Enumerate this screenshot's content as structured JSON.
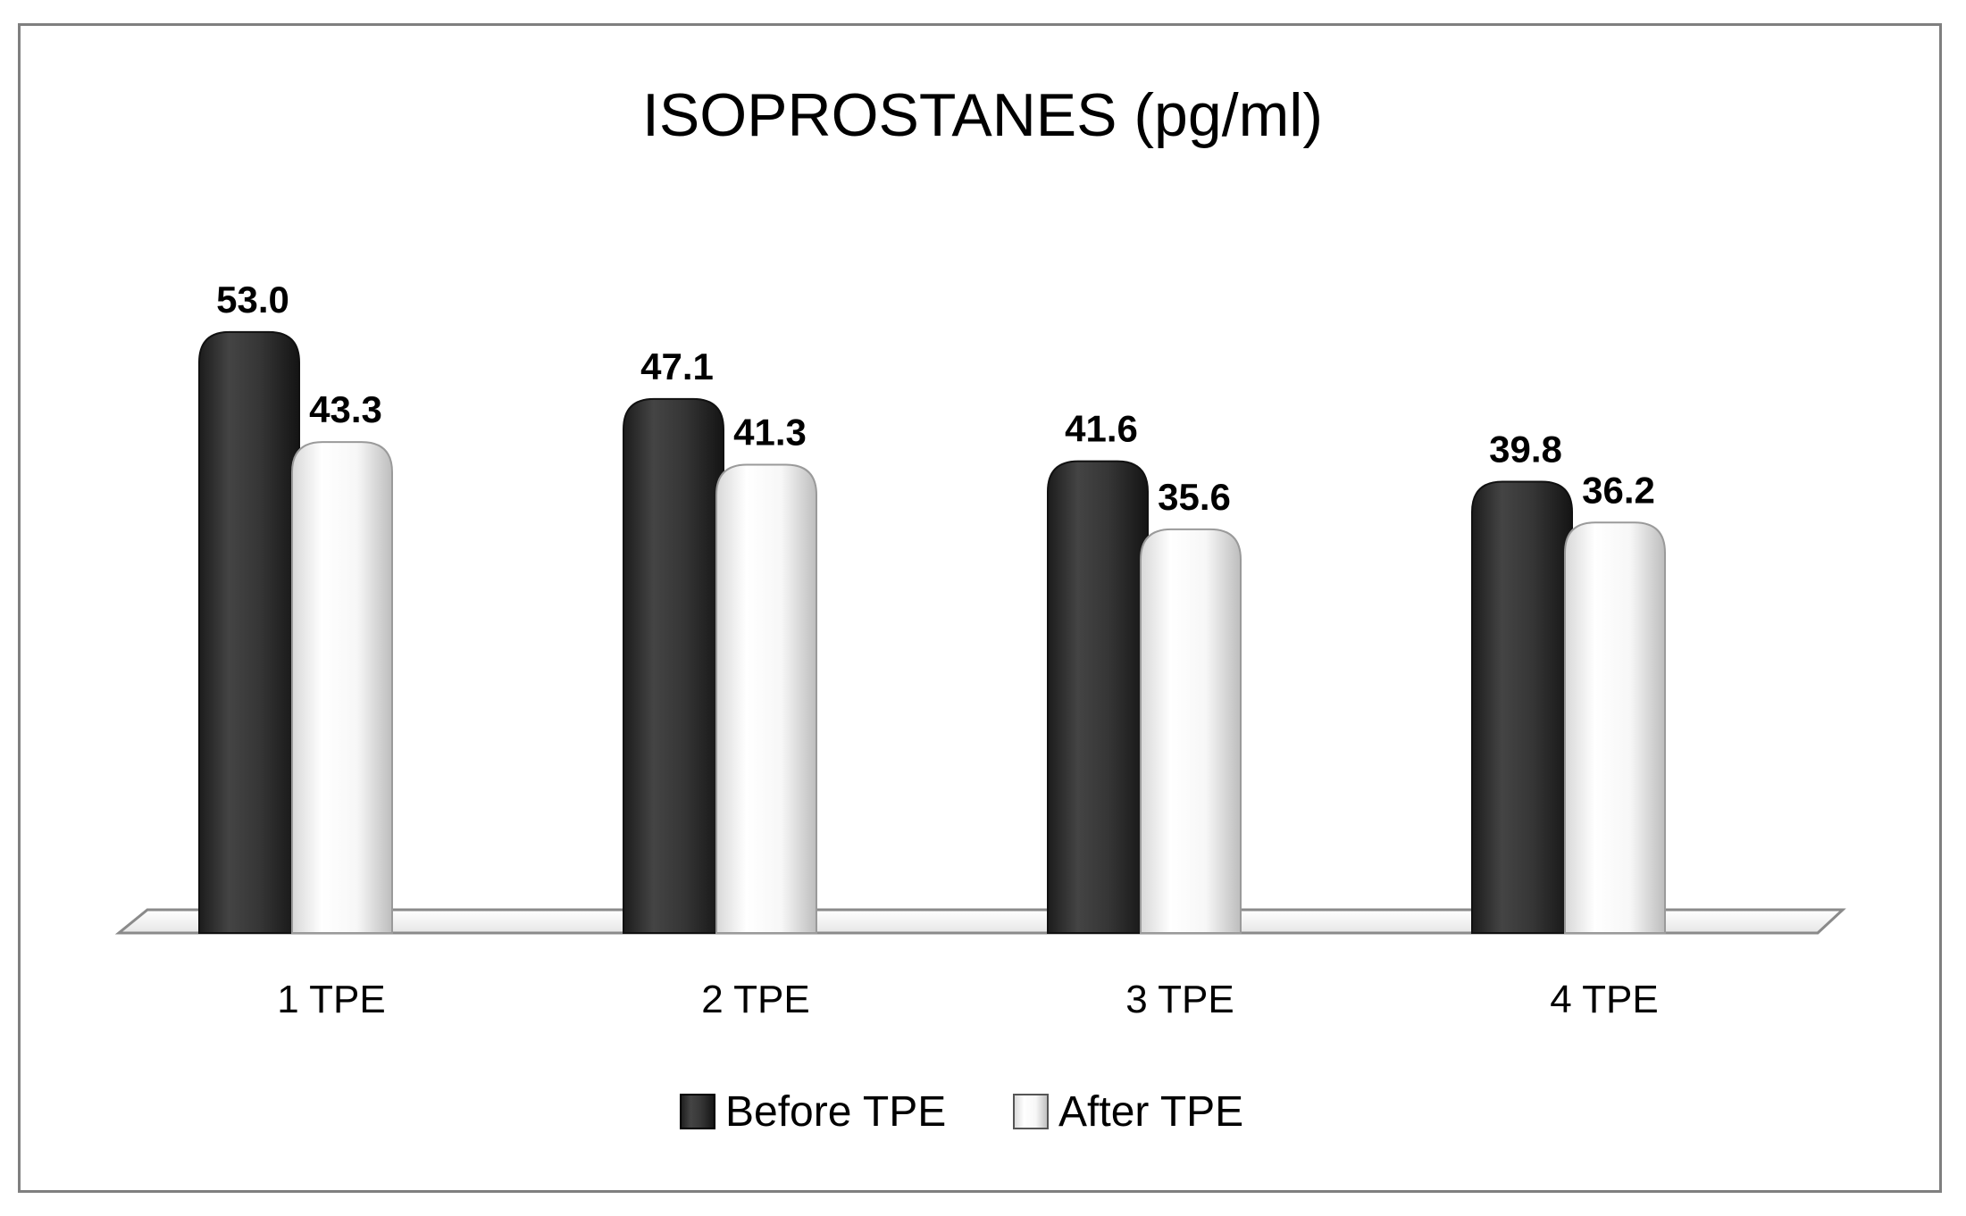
{
  "chart_data": {
    "type": "bar",
    "title": "ISOPROSTANES (pg/ml)",
    "categories": [
      "1 TPE",
      "2 TPE",
      "3 TPE",
      "4 TPE"
    ],
    "series": [
      {
        "name": "Before TPE",
        "values": [
          53.0,
          47.1,
          41.6,
          39.8
        ],
        "color": "#3a3a3a"
      },
      {
        "name": "After TPE",
        "values": [
          43.3,
          41.3,
          35.6,
          36.2
        ],
        "color": "#f4f4f4"
      }
    ],
    "data_labels": [
      [
        "53.0",
        "47.1",
        "41.6",
        "39.8"
      ],
      [
        "43.3",
        "41.3",
        "35.6",
        "36.2"
      ]
    ],
    "xlabel": "",
    "ylabel": "",
    "ylim": [
      0,
      60
    ],
    "grid": false,
    "legend": "bottom-center"
  }
}
